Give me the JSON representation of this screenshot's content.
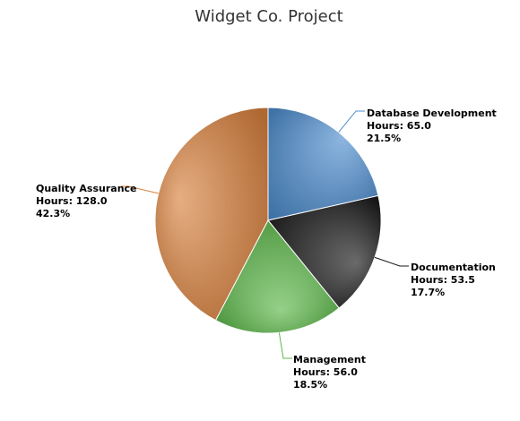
{
  "chart_data": {
    "type": "pie",
    "title": "Widget Co. Project",
    "value_label": "Hours",
    "series": [
      {
        "name": "Database Development",
        "value": 65.0,
        "value_text": "65.0",
        "percent_text": "21.5%",
        "color": "#4f8fd0"
      },
      {
        "name": "Documentation",
        "value": 53.5,
        "value_text": "53.5",
        "percent_text": "17.7%",
        "color": "#1a1a1a"
      },
      {
        "name": "Management",
        "value": 56.0,
        "value_text": "56.0",
        "percent_text": "18.5%",
        "color": "#5cb84a"
      },
      {
        "name": "Quality Assurance",
        "value": 128.0,
        "value_text": "128.0",
        "percent_text": "42.3%",
        "color": "#d9823e"
      }
    ]
  }
}
